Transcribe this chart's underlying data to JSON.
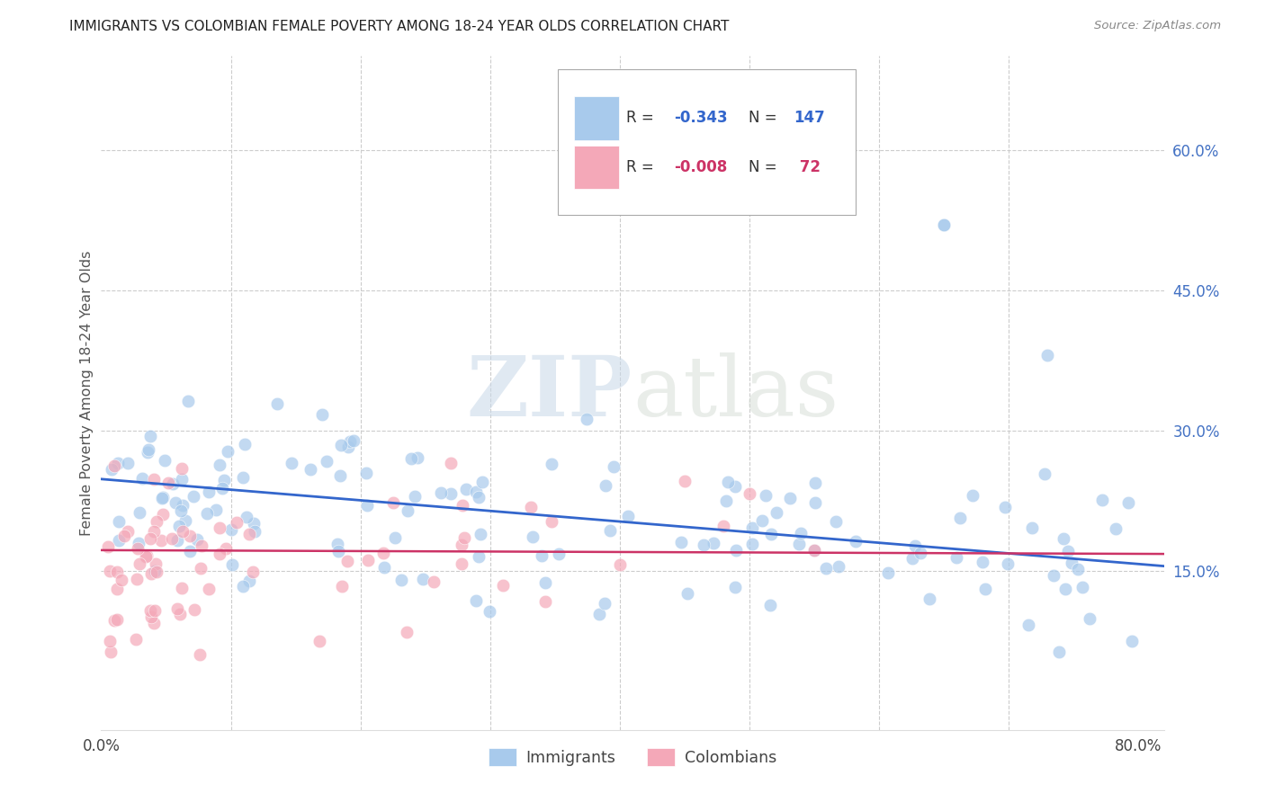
{
  "title": "IMMIGRANTS VS COLOMBIAN FEMALE POVERTY AMONG 18-24 YEAR OLDS CORRELATION CHART",
  "source": "Source: ZipAtlas.com",
  "ylabel": "Female Poverty Among 18-24 Year Olds",
  "xlim": [
    0.0,
    0.82
  ],
  "ylim": [
    -0.02,
    0.7
  ],
  "ytick_right_labels": [
    "60.0%",
    "45.0%",
    "30.0%",
    "15.0%"
  ],
  "ytick_right_vals": [
    0.6,
    0.45,
    0.3,
    0.15
  ],
  "blue_color": "#a8caec",
  "pink_color": "#f4a8b8",
  "blue_line_color": "#3366cc",
  "pink_line_color": "#cc3366",
  "watermark_zip": "ZIP",
  "watermark_atlas": "atlas",
  "background_color": "#ffffff",
  "grid_color": "#cccccc",
  "blue_r": "-0.343",
  "blue_n": "147",
  "pink_r": "-0.008",
  "pink_n": " 72",
  "blue_line_start_y": 0.248,
  "blue_line_end_y": 0.155,
  "pink_line_start_y": 0.172,
  "pink_line_end_y": 0.168
}
